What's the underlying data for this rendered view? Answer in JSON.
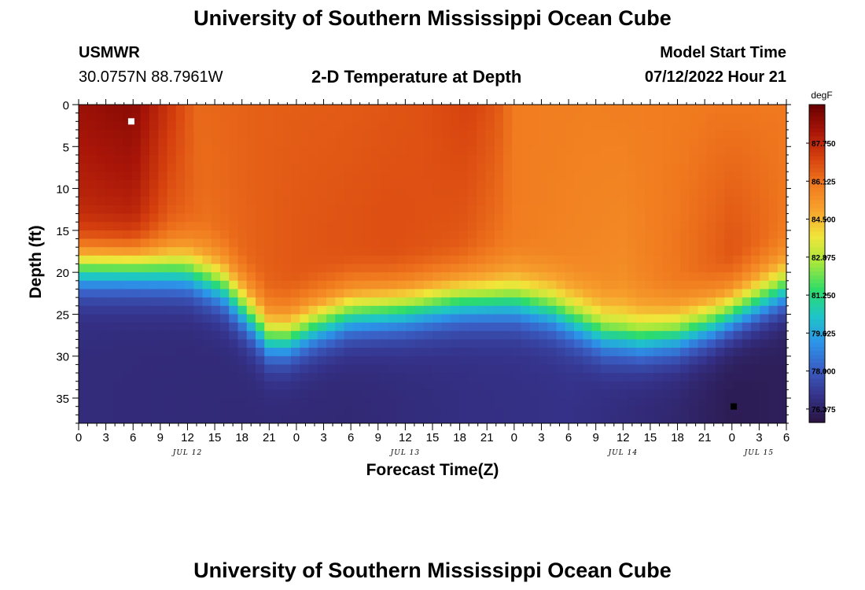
{
  "header": {
    "title": "University of Southern Mississippi Ocean Cube",
    "station_name": "USMWR",
    "station_coords": "30.0757N  88.7961W",
    "subtitle": "2-D Temperature at Depth",
    "model_start_label": "Model Start Time",
    "model_start_value": "07/12/2022 Hour 21"
  },
  "footer": {
    "title": "University of Southern Mississippi Ocean Cube"
  },
  "colors": {
    "scale": [
      "#2a1440",
      "#35328a",
      "#3a5ec4",
      "#2c93e8",
      "#1ec5c8",
      "#2cdc6a",
      "#a4e83c",
      "#f0e63a",
      "#f7a42e",
      "#f0781e",
      "#d6400e",
      "#a81508",
      "#660000"
    ]
  },
  "chart_data": {
    "type": "heatmap",
    "title": "2-D Temperature at Depth",
    "xlabel": "Forecast Time(Z)",
    "ylabel": "Depth (ft)",
    "x_tick_labels": [
      "0",
      "3",
      "6",
      "9",
      "12",
      "15",
      "18",
      "21",
      "0",
      "3",
      "6",
      "9",
      "12",
      "15",
      "18",
      "21",
      "0",
      "3",
      "6",
      "9",
      "12",
      "15",
      "18",
      "21",
      "0",
      "3",
      "6"
    ],
    "x_range_hours": [
      0,
      78
    ],
    "y_ticks": [
      0,
      5,
      10,
      15,
      20,
      25,
      30,
      35
    ],
    "ylim": [
      0,
      38
    ],
    "date_labels": [
      {
        "label": "JUL 12",
        "hour": 12
      },
      {
        "label": "JUL 13",
        "hour": 36
      },
      {
        "label": "JUL 14",
        "hour": 60
      },
      {
        "label": "JUL 15",
        "hour": 75
      }
    ],
    "colorbar": {
      "unit": "degF",
      "ticks": [
        "87.750",
        "86.125",
        "84.500",
        "82.875",
        "81.250",
        "79.625",
        "78.000",
        "76.375"
      ],
      "range": [
        75.8,
        89.4
      ]
    },
    "markers": [
      {
        "type": "max",
        "hour": 5.8,
        "depth_ft": 2,
        "color": "#ffffff"
      },
      {
        "type": "min",
        "hour": 72.2,
        "depth_ft": 36,
        "color": "#000000"
      }
    ],
    "surface_temp_keys": [
      {
        "hour": 0,
        "temp": 88.5
      },
      {
        "hour": 6,
        "temp": 88.8
      },
      {
        "hour": 10,
        "temp": 87.4
      },
      {
        "hour": 13,
        "temp": 86.3
      },
      {
        "hour": 20,
        "temp": 86.5
      },
      {
        "hour": 30,
        "temp": 86.6
      },
      {
        "hour": 38,
        "temp": 86.8
      },
      {
        "hour": 43,
        "temp": 87.1
      },
      {
        "hour": 46,
        "temp": 86.7
      },
      {
        "hour": 48,
        "temp": 85.9
      },
      {
        "hour": 56,
        "temp": 85.8
      },
      {
        "hour": 66,
        "temp": 85.9
      },
      {
        "hour": 70,
        "temp": 86.0
      },
      {
        "hour": 78,
        "temp": 86.0
      }
    ],
    "mid_temp_keys": [
      {
        "hour": 0,
        "temp": 87.8
      },
      {
        "hour": 6,
        "temp": 88.0
      },
      {
        "hour": 10,
        "temp": 86.7
      },
      {
        "hour": 14,
        "temp": 86.2
      },
      {
        "hour": 24,
        "temp": 86.7
      },
      {
        "hour": 34,
        "temp": 86.9
      },
      {
        "hour": 42,
        "temp": 86.7
      },
      {
        "hour": 48,
        "temp": 85.9
      },
      {
        "hour": 60,
        "temp": 85.5
      },
      {
        "hour": 68,
        "temp": 86.3
      },
      {
        "hour": 72,
        "temp": 86.8
      },
      {
        "hour": 78,
        "temp": 86.0
      }
    ],
    "thermocline_depth_keys": [
      {
        "hour": 0,
        "depth_ft": 19.5
      },
      {
        "hour": 6,
        "depth_ft": 19.5
      },
      {
        "hour": 12,
        "depth_ft": 20
      },
      {
        "hour": 16,
        "depth_ft": 22
      },
      {
        "hour": 19,
        "depth_ft": 25.5
      },
      {
        "hour": 21,
        "depth_ft": 28
      },
      {
        "hour": 23,
        "depth_ft": 28
      },
      {
        "hour": 26,
        "depth_ft": 26.5
      },
      {
        "hour": 30,
        "depth_ft": 25
      },
      {
        "hour": 36,
        "depth_ft": 24.5
      },
      {
        "hour": 42,
        "depth_ft": 23.5
      },
      {
        "hour": 48,
        "depth_ft": 23.5
      },
      {
        "hour": 52,
        "depth_ft": 24.5
      },
      {
        "hour": 55,
        "depth_ft": 26
      },
      {
        "hour": 58,
        "depth_ft": 27.5
      },
      {
        "hour": 62,
        "depth_ft": 28
      },
      {
        "hour": 66,
        "depth_ft": 27.5
      },
      {
        "hour": 70,
        "depth_ft": 26
      },
      {
        "hour": 74,
        "depth_ft": 24
      },
      {
        "hour": 78,
        "depth_ft": 22
      }
    ],
    "deep_temp_keys": [
      {
        "hour": 0,
        "temp": 76.7
      },
      {
        "hour": 30,
        "temp": 76.6
      },
      {
        "hour": 42,
        "temp": 76.8
      },
      {
        "hour": 54,
        "temp": 76.9
      },
      {
        "hour": 66,
        "temp": 76.5
      },
      {
        "hour": 72,
        "temp": 76.1
      },
      {
        "hour": 78,
        "temp": 76.2
      }
    ]
  }
}
